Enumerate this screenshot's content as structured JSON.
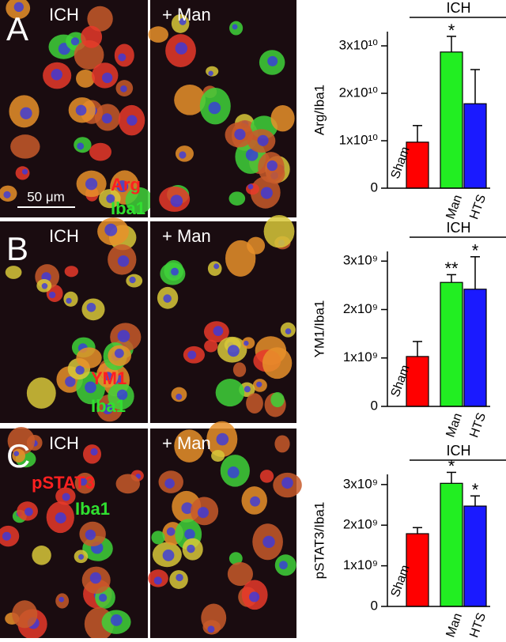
{
  "panels": [
    {
      "letter": "A",
      "left_label": "ICH",
      "right_label": "+ Man",
      "stains": [
        "Arg",
        "Iba1"
      ],
      "scale_bar": "50 μm"
    },
    {
      "letter": "B",
      "left_label": "ICH",
      "right_label": "+ Man",
      "stains": [
        "YM1",
        "Iba1"
      ]
    },
    {
      "letter": "C",
      "left_label": "ICH",
      "right_label": "+ Man",
      "stains": [
        "pSTAT3",
        "Iba1"
      ]
    }
  ],
  "chart_data": [
    {
      "type": "bar",
      "y_label": "Arg/Iba1",
      "bracket_label": "ICH",
      "categories": [
        "Sham",
        "Man",
        "HTS"
      ],
      "colors": [
        "#ff0000",
        "#22ee22",
        "#1a1aff"
      ],
      "values": [
        9700000000.0,
        28700000000.0,
        17800000000.0
      ],
      "errors": [
        3500000000.0,
        3300000000.0,
        7200000000.0
      ],
      "significance": [
        null,
        "*",
        null
      ],
      "ylim": [
        0,
        33000000000.0
      ],
      "yticks": [
        0,
        {
          "value": 10000000000.0,
          "label": "1x10¹⁰"
        },
        {
          "value": 20000000000.0,
          "label": "2x10¹⁰"
        },
        {
          "value": 30000000000.0,
          "label": "3x10¹⁰"
        }
      ]
    },
    {
      "type": "bar",
      "y_label": "YM1/Iba1",
      "bracket_label": "ICH",
      "categories": [
        "Sham",
        "Man",
        "HTS"
      ],
      "colors": [
        "#ff0000",
        "#22ee22",
        "#1a1aff"
      ],
      "values": [
        1030000000.0,
        2560000000.0,
        2420000000.0
      ],
      "errors": [
        310000000.0,
        160000000.0,
        670000000.0
      ],
      "significance": [
        null,
        "**",
        "*"
      ],
      "ylim": [
        0,
        3200000000.0
      ],
      "yticks": [
        0,
        {
          "value": 1000000000.0,
          "label": "1x10⁹"
        },
        {
          "value": 2000000000.0,
          "label": "2x10⁹"
        },
        {
          "value": 3000000000.0,
          "label": "3x10⁹"
        }
      ]
    },
    {
      "type": "bar",
      "y_label": "pSTAT3/Iba1",
      "bracket_label": "ICH",
      "categories": [
        "Sham",
        "Man",
        "HTS"
      ],
      "colors": [
        "#ff0000",
        "#22ee22",
        "#1a1aff"
      ],
      "values": [
        1790000000.0,
        3030000000.0,
        2470000000.0
      ],
      "errors": [
        150000000.0,
        270000000.0,
        250000000.0
      ],
      "significance": [
        null,
        "*",
        "*"
      ],
      "ylim": [
        0,
        3250000000.0
      ],
      "yticks": [
        0,
        {
          "value": 1000000000.0,
          "label": "1x10⁹"
        },
        {
          "value": 2000000000.0,
          "label": "2x10⁹"
        },
        {
          "value": 3000000000.0,
          "label": "3x10⁹"
        }
      ]
    }
  ]
}
